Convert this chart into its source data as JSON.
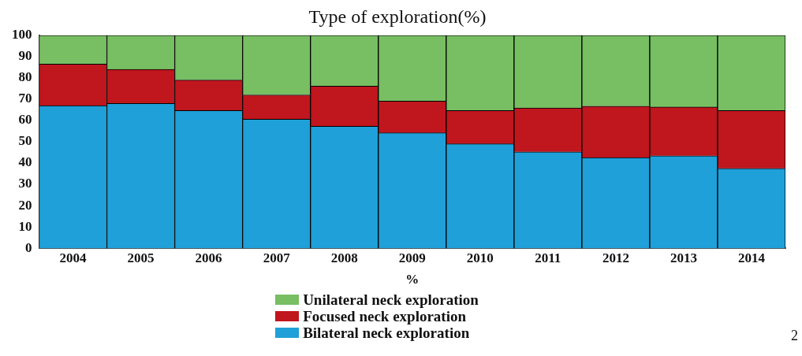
{
  "chart_data": {
    "type": "bar",
    "title": "Type of exploration(%)",
    "xlabel": "%",
    "categories": [
      "2004",
      "2005",
      "2006",
      "2007",
      "2008",
      "2009",
      "2010",
      "2011",
      "2012",
      "2013",
      "2014"
    ],
    "series": [
      {
        "name": "Bilateral neck exploration",
        "color": "#1fa0d8",
        "values": [
          67.0,
          68.0,
          64.7,
          60.6,
          57.3,
          54.2,
          49.0,
          45.3,
          42.6,
          43.4,
          37.5
        ]
      },
      {
        "name": "Focused neck exploration",
        "color": "#c0161e",
        "values": [
          19.5,
          16.0,
          14.3,
          11.4,
          18.8,
          14.9,
          15.7,
          20.6,
          24.1,
          22.9,
          27.2
        ]
      },
      {
        "name": "Unilateral neck exploration",
        "color": "#78be63",
        "values": [
          13.5,
          16.0,
          21.0,
          28.0,
          23.9,
          30.9,
          35.3,
          34.1,
          33.3,
          33.7,
          35.3
        ]
      }
    ],
    "stacked": true,
    "ylim": [
      0,
      100
    ],
    "yticks": [
      0,
      10,
      20,
      30,
      40,
      50,
      60,
      70,
      80,
      90,
      100
    ],
    "grid": false,
    "legend": "bottom",
    "annotations": [
      "2"
    ]
  }
}
